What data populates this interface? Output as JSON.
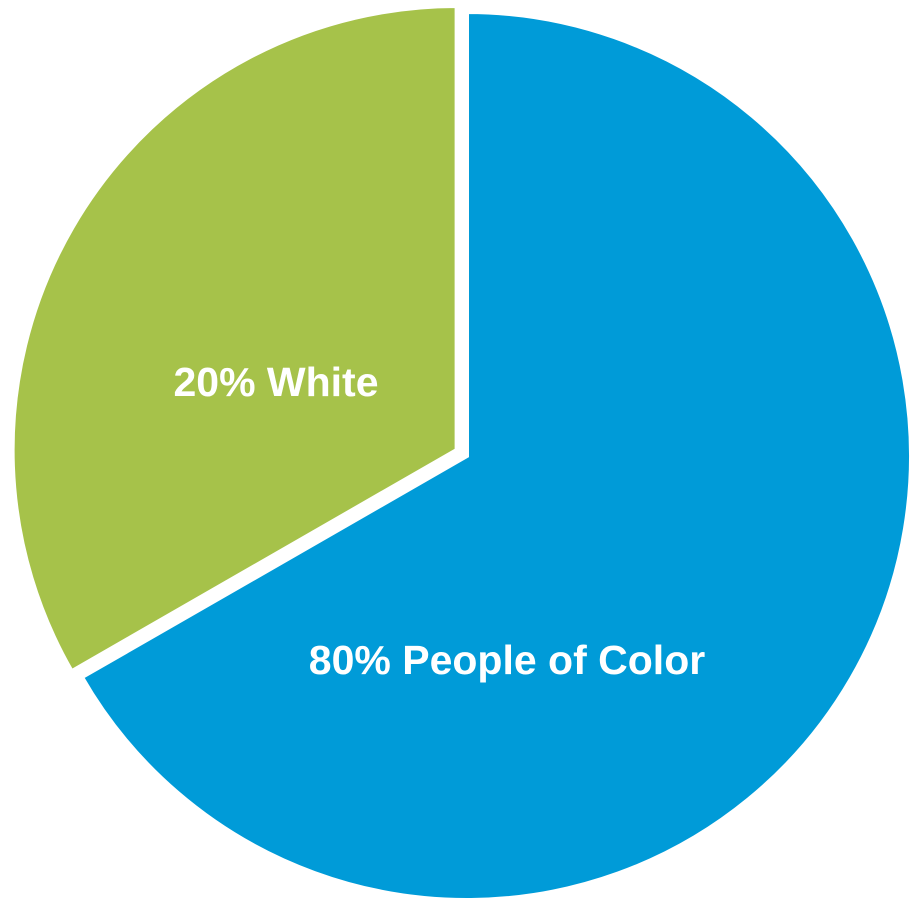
{
  "chart_data": {
    "type": "pie",
    "slices": [
      {
        "label": "80% People of Color",
        "value": 80,
        "color": "#009bd8",
        "exploded": false
      },
      {
        "label": "20% White",
        "value": 20,
        "color": "#a6c24a",
        "exploded": true
      }
    ],
    "legend": "none"
  }
}
